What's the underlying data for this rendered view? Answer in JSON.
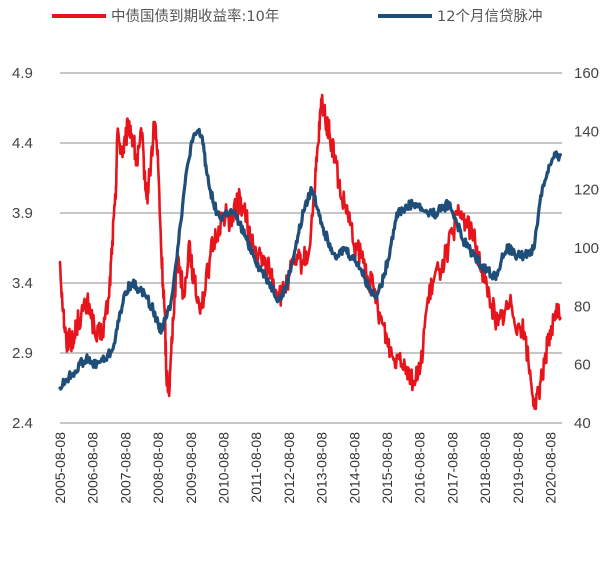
{
  "chart_data": {
    "type": "line",
    "title": "",
    "xlabel": "",
    "ylabel_left": "",
    "ylabel_right": "",
    "x_ticks": [
      "2005-08-08",
      "2006-08-08",
      "2007-08-08",
      "2008-08-08",
      "2009-08-08",
      "2010-08-08",
      "2011-08-08",
      "2012-08-08",
      "2013-08-08",
      "2014-08-08",
      "2015-08-08",
      "2016-08-08",
      "2017-08-08",
      "2018-08-08",
      "2019-08-08",
      "2020-08-08"
    ],
    "x_range": [
      2005.6,
      2020.95
    ],
    "y_left_range": [
      2.4,
      4.9
    ],
    "y_left_ticks": [
      "2.4",
      "2.9",
      "3.4",
      "3.9",
      "4.4",
      "4.9"
    ],
    "y_right_range": [
      40,
      160
    ],
    "y_right_ticks": [
      "40",
      "60",
      "80",
      "100",
      "120",
      "140",
      "160"
    ],
    "grid": true,
    "series": [
      {
        "name": "中债国债到期收益率:10年",
        "axis": "left",
        "color": "#e8141c",
        "x": [
          2005.6,
          2005.7,
          2005.8,
          2005.9,
          2006.0,
          2006.1,
          2006.3,
          2006.5,
          2006.7,
          2006.9,
          2007.1,
          2007.2,
          2007.3,
          2007.35,
          2007.5,
          2007.6,
          2007.7,
          2007.85,
          2007.95,
          2008.1,
          2008.25,
          2008.35,
          2008.5,
          2008.6,
          2008.7,
          2008.8,
          2008.85,
          2008.95,
          2009.05,
          2009.2,
          2009.4,
          2009.55,
          2009.7,
          2009.85,
          2010.0,
          2010.2,
          2010.4,
          2010.6,
          2010.8,
          2011.0,
          2011.1,
          2011.3,
          2011.45,
          2011.6,
          2011.8,
          2012.0,
          2012.2,
          2012.4,
          2012.6,
          2012.8,
          2013.0,
          2013.2,
          2013.4,
          2013.5,
          2013.6,
          2013.75,
          2013.85,
          2014.0,
          2014.2,
          2014.4,
          2014.6,
          2014.8,
          2015.0,
          2015.2,
          2015.4,
          2015.6,
          2015.8,
          2016.0,
          2016.2,
          2016.4,
          2016.6,
          2016.8,
          2017.0,
          2017.2,
          2017.4,
          2017.6,
          2017.8,
          2018.0,
          2018.2,
          2018.4,
          2018.6,
          2018.8,
          2019.0,
          2019.2,
          2019.4,
          2019.6,
          2019.8,
          2020.0,
          2020.15,
          2020.3,
          2020.45,
          2020.6,
          2020.75,
          2020.9
        ],
        "values": [
          3.55,
          3.2,
          2.95,
          3.05,
          2.95,
          3.1,
          3.2,
          3.25,
          3.0,
          3.05,
          3.3,
          3.7,
          4.0,
          4.45,
          4.35,
          4.4,
          4.55,
          4.4,
          4.25,
          4.45,
          4.0,
          4.2,
          4.55,
          4.25,
          3.6,
          3.2,
          2.75,
          2.65,
          3.15,
          3.6,
          3.3,
          3.7,
          3.4,
          3.25,
          3.3,
          3.6,
          3.75,
          3.9,
          3.85,
          3.95,
          4.0,
          3.85,
          3.7,
          3.6,
          3.55,
          3.5,
          3.35,
          3.3,
          3.45,
          3.55,
          3.55,
          3.6,
          4.1,
          4.4,
          4.7,
          4.55,
          4.45,
          4.3,
          4.0,
          3.9,
          3.65,
          3.6,
          3.45,
          3.35,
          3.15,
          3.0,
          2.85,
          2.9,
          2.8,
          2.7,
          2.75,
          3.2,
          3.4,
          3.5,
          3.6,
          3.75,
          3.9,
          3.85,
          3.75,
          3.6,
          3.4,
          3.25,
          3.1,
          3.2,
          3.25,
          3.1,
          3.05,
          2.7,
          2.5,
          2.7,
          2.9,
          3.0,
          3.2,
          3.15
        ]
      },
      {
        "name": "12个月信贷脉冲",
        "axis": "right",
        "color": "#1f4e79",
        "x": [
          2005.6,
          2005.8,
          2006.0,
          2006.2,
          2006.4,
          2006.6,
          2006.8,
          2007.0,
          2007.2,
          2007.4,
          2007.6,
          2007.8,
          2008.0,
          2008.2,
          2008.4,
          2008.6,
          2008.7,
          2008.85,
          2009.0,
          2009.2,
          2009.4,
          2009.6,
          2009.8,
          2009.95,
          2010.1,
          2010.3,
          2010.5,
          2010.7,
          2010.9,
          2011.1,
          2011.3,
          2011.5,
          2011.7,
          2011.9,
          2012.1,
          2012.3,
          2012.5,
          2012.7,
          2012.9,
          2013.1,
          2013.3,
          2013.5,
          2013.7,
          2013.9,
          2014.1,
          2014.3,
          2014.5,
          2014.7,
          2014.9,
          2015.1,
          2015.3,
          2015.5,
          2015.7,
          2015.9,
          2016.1,
          2016.3,
          2016.5,
          2016.7,
          2016.9,
          2017.1,
          2017.3,
          2017.5,
          2017.7,
          2017.9,
          2018.1,
          2018.3,
          2018.5,
          2018.7,
          2018.9,
          2019.1,
          2019.3,
          2019.5,
          2019.7,
          2019.9,
          2020.1,
          2020.3,
          2020.5,
          2020.7,
          2020.9
        ],
        "values": [
          52,
          55,
          57,
          60,
          62,
          60,
          61,
          62,
          65,
          75,
          85,
          88,
          86,
          84,
          80,
          74,
          72,
          76,
          82,
          100,
          120,
          135,
          140,
          138,
          125,
          115,
          110,
          112,
          112,
          108,
          103,
          98,
          93,
          90,
          86,
          82,
          86,
          95,
          105,
          115,
          120,
          113,
          105,
          100,
          97,
          100,
          97,
          95,
          90,
          85,
          84,
          90,
          100,
          112,
          113,
          115,
          115,
          113,
          112,
          112,
          114,
          115,
          110,
          103,
          100,
          97,
          94,
          92,
          90,
          96,
          100,
          98,
          97,
          98,
          100,
          118,
          126,
          131,
          132
        ]
      }
    ]
  }
}
